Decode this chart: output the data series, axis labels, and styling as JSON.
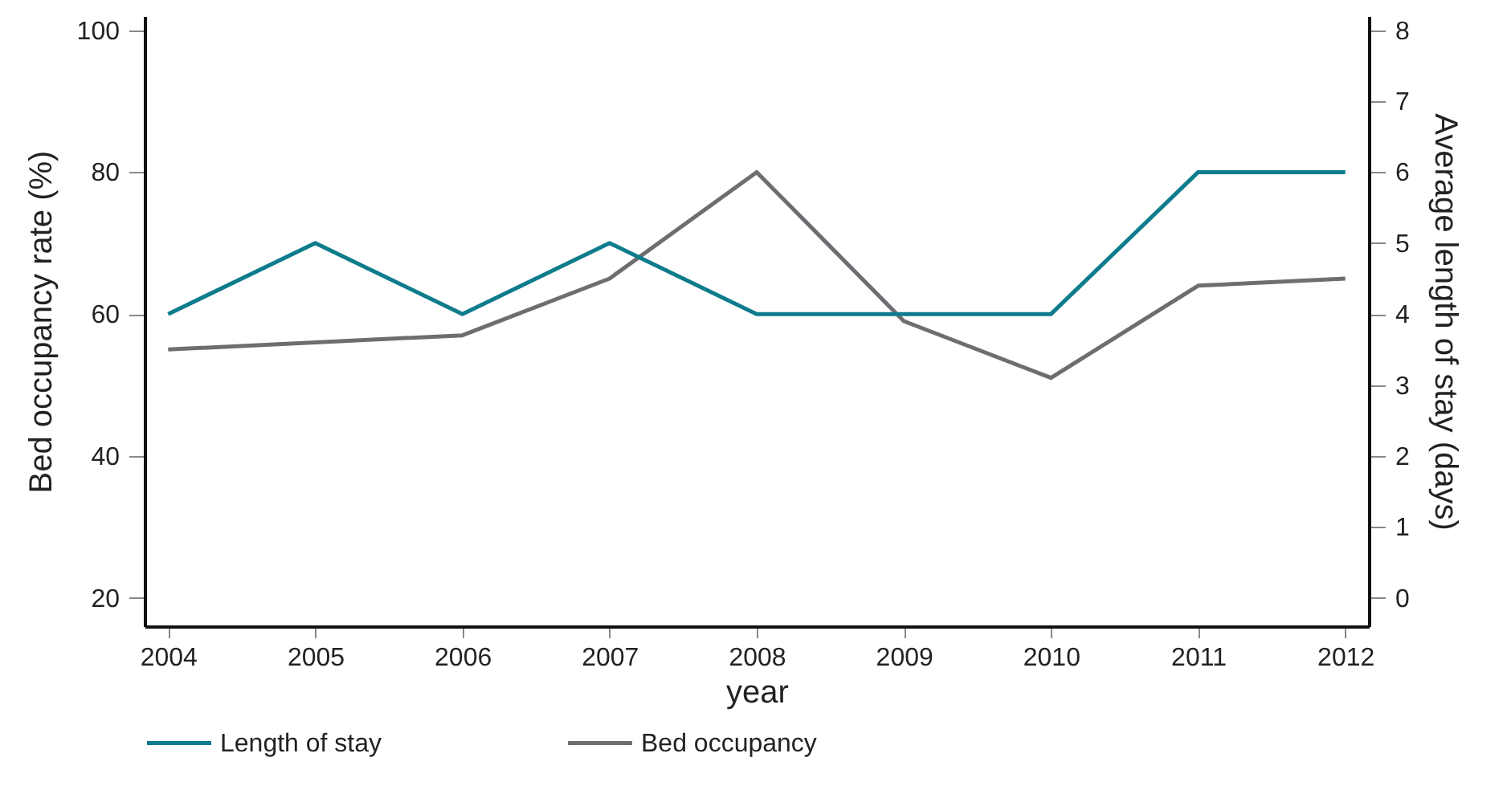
{
  "chart_data": {
    "type": "line",
    "xlabel": "year",
    "ylabel": "Bed occupancy rate (%)",
    "y2label": "Average length of stay (days)",
    "categories": [
      "2004",
      "2005",
      "2006",
      "2007",
      "2008",
      "2009",
      "2010",
      "2011",
      "2012"
    ],
    "series": [
      {
        "name": "Length of stay",
        "color": "#0e7c8c",
        "axis": "y2",
        "values": [
          4,
          5,
          4,
          5,
          4,
          4,
          4,
          6,
          6
        ]
      },
      {
        "name": "Bed occupancy",
        "color": "#6d6e71",
        "axis": "y",
        "values": [
          55,
          56,
          57,
          65,
          80,
          59,
          51,
          64,
          65
        ]
      }
    ],
    "ylim": [
      16,
      102
    ],
    "yticks": [
      20,
      40,
      60,
      80,
      100
    ],
    "y2lim": [
      -0.4,
      8.2
    ],
    "y2ticks": [
      0,
      1,
      2,
      3,
      4,
      5,
      6,
      7,
      8
    ],
    "grid": false,
    "legend": "bottom",
    "line_style": "solid"
  }
}
